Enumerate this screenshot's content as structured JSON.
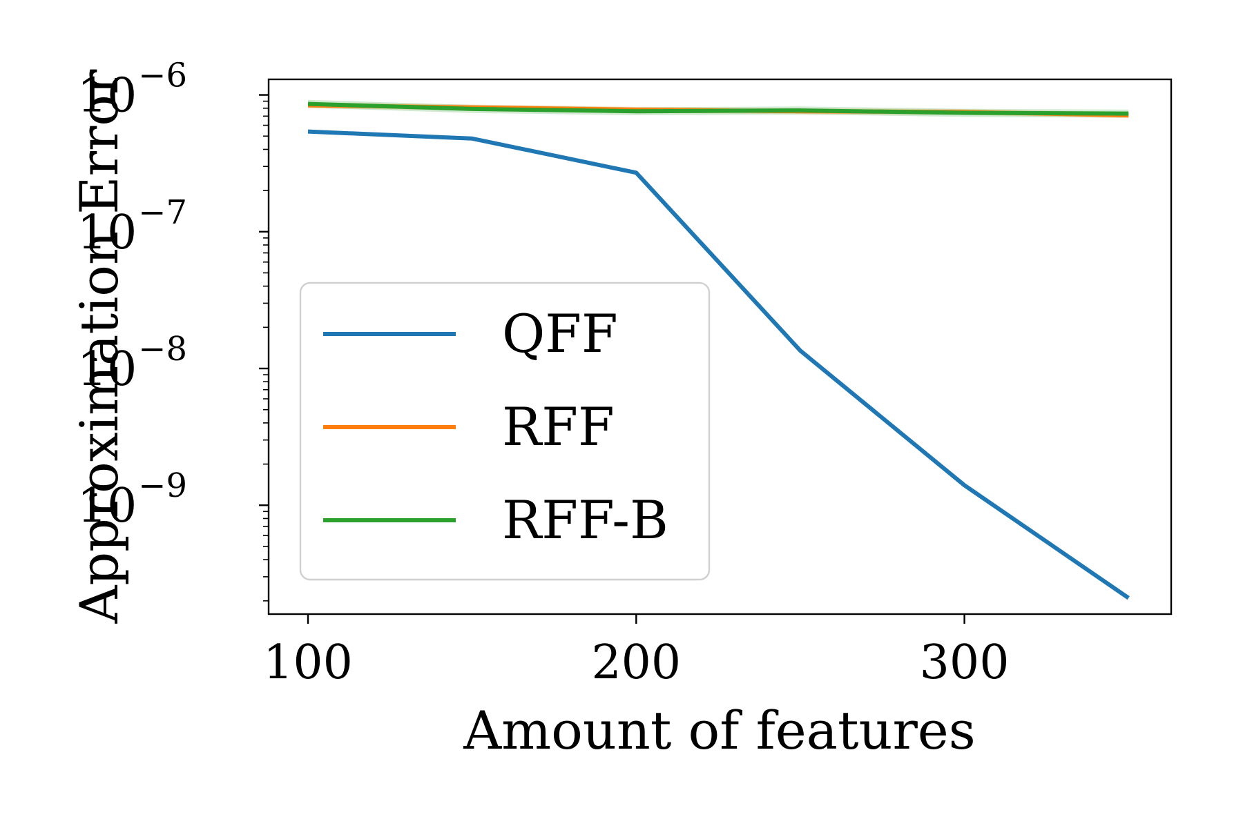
{
  "chart_data": {
    "type": "line",
    "xlabel": "Amount of features",
    "ylabel": "Approximation Error",
    "xlim": [
      88,
      363
    ],
    "ylim": [
      1.6e-10,
      1.3e-06
    ],
    "yscale": "log",
    "grid": false,
    "legend_position": "center-left",
    "x_ticks": [
      {
        "value": 100,
        "label": "100"
      },
      {
        "value": 200,
        "label": "200"
      },
      {
        "value": 300,
        "label": "300"
      }
    ],
    "y_ticks": [
      {
        "value": 1e-06,
        "base": "10",
        "exp": "−6"
      },
      {
        "value": 1e-07,
        "base": "10",
        "exp": "−7"
      },
      {
        "value": 1e-08,
        "base": "10",
        "exp": "−8"
      },
      {
        "value": 1e-09,
        "base": "10",
        "exp": "−9"
      }
    ],
    "x": [
      100,
      150,
      200,
      250,
      300,
      350
    ],
    "series": [
      {
        "name": "QFF",
        "color": "#1f77b4",
        "values": [
          5.4e-07,
          4.8e-07,
          2.7e-07,
          1.35e-08,
          1.4e-09,
          2.1e-10
        ]
      },
      {
        "name": "RFF",
        "color": "#ff7f0e",
        "values": [
          8.4e-07,
          8.1e-07,
          7.8e-07,
          7.6e-07,
          7.5e-07,
          7.1e-07
        ],
        "band_spread": 0.05
      },
      {
        "name": "RFF-B",
        "color": "#2ca02c",
        "values": [
          8.6e-07,
          7.9e-07,
          7.6e-07,
          7.7e-07,
          7.4e-07,
          7.3e-07
        ],
        "band_spread": 0.07
      }
    ]
  }
}
